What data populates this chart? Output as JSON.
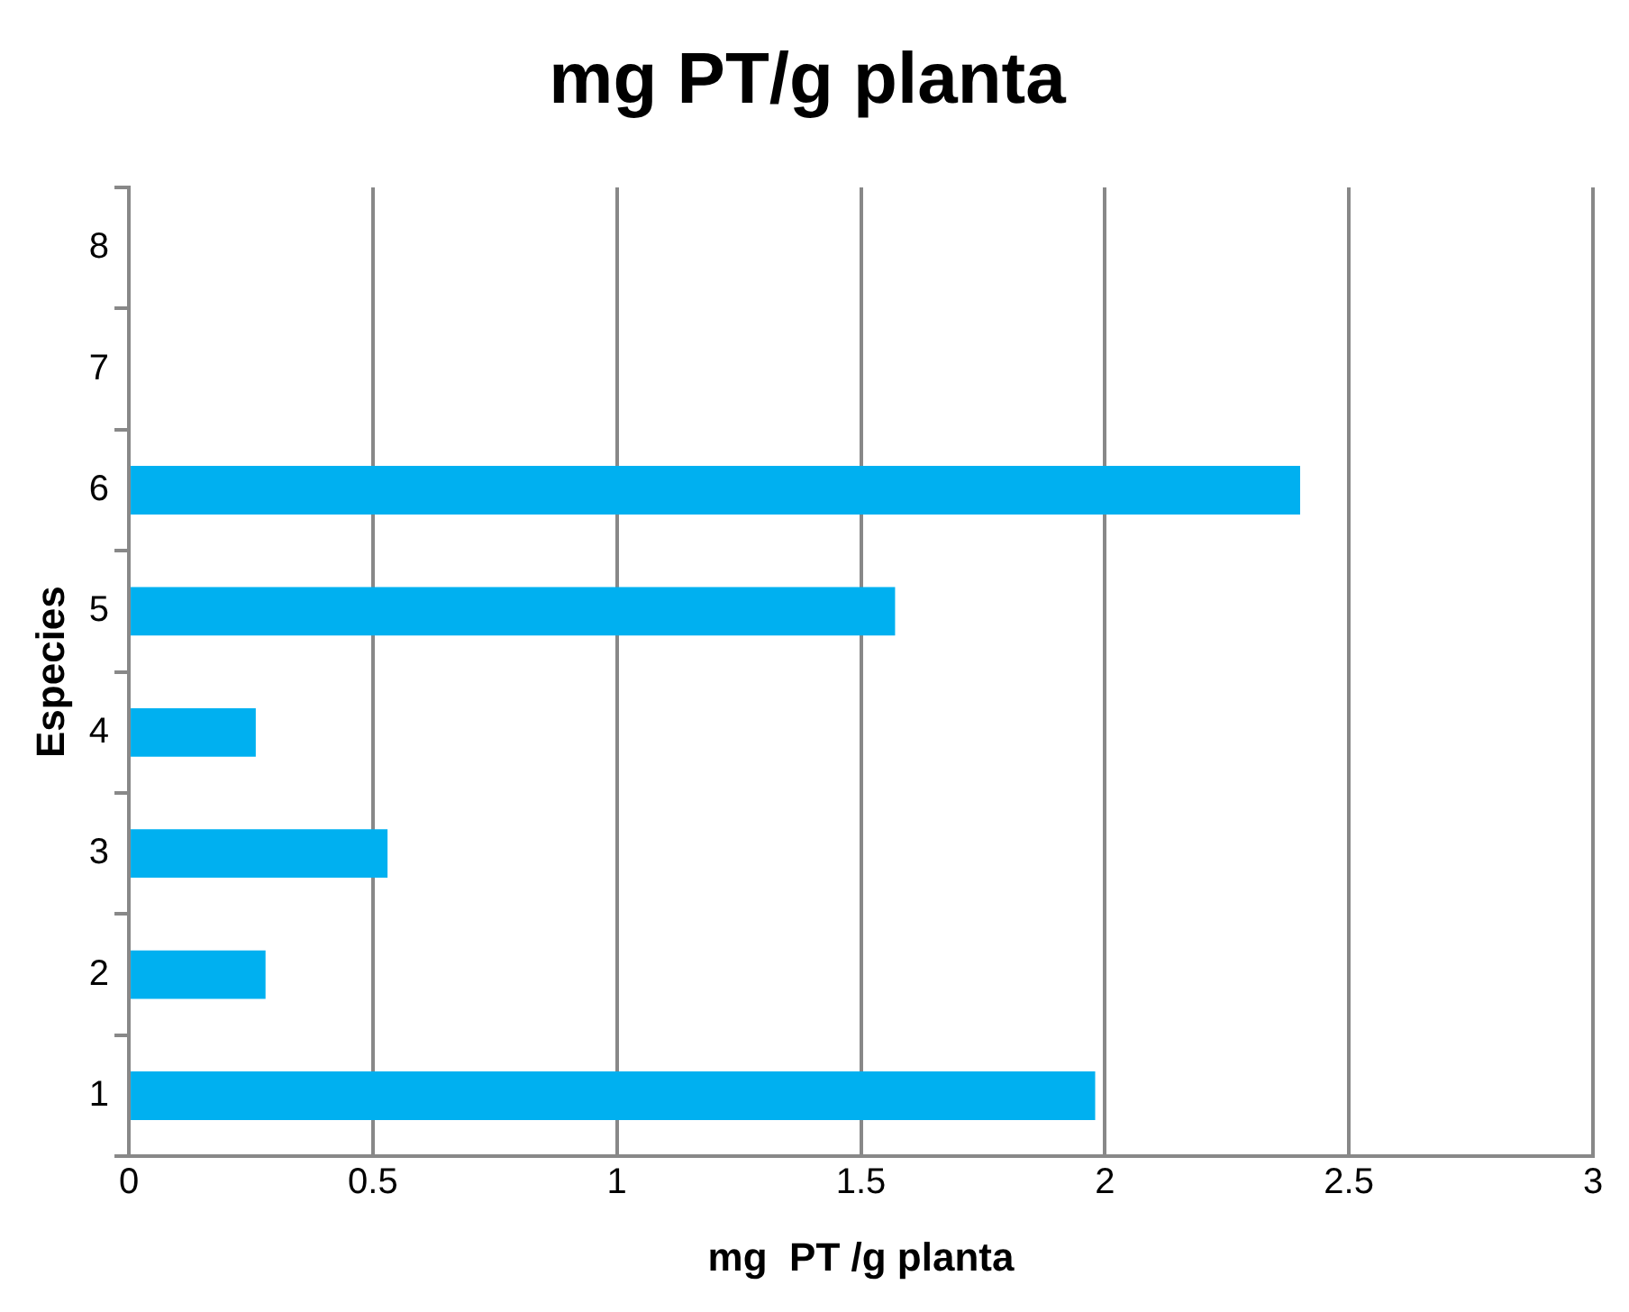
{
  "chart_data": {
    "type": "bar",
    "orientation": "horizontal",
    "title": "mg PT/g planta",
    "xlabel": "mg  PT /g planta",
    "ylabel": "Especies",
    "categories": [
      "8",
      "7",
      "6",
      "5",
      "4",
      "3",
      "2",
      "1"
    ],
    "values": [
      null,
      null,
      2.4,
      1.57,
      0.26,
      0.53,
      0.28,
      1.98
    ],
    "color": "#00b0f0",
    "xlim": [
      0,
      3
    ],
    "xticks": [
      0,
      0.5,
      1,
      1.5,
      2,
      2.5,
      3
    ],
    "grid": "x",
    "legend": false
  }
}
